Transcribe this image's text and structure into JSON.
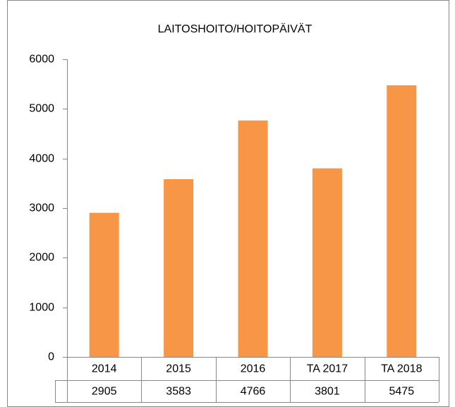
{
  "chart_data": {
    "type": "bar",
    "title": "LAITOSHOITO/HOITOPÄIVÄT",
    "categories": [
      "2014",
      "2015",
      "2016",
      "TA 2017",
      "TA 2018"
    ],
    "values": [
      2905,
      3583,
      4766,
      3801,
      5475
    ],
    "color": "#f79646",
    "ylim": [
      0,
      6000
    ],
    "yticks": [
      0,
      1000,
      2000,
      3000,
      4000,
      5000,
      6000
    ],
    "grid": false
  }
}
